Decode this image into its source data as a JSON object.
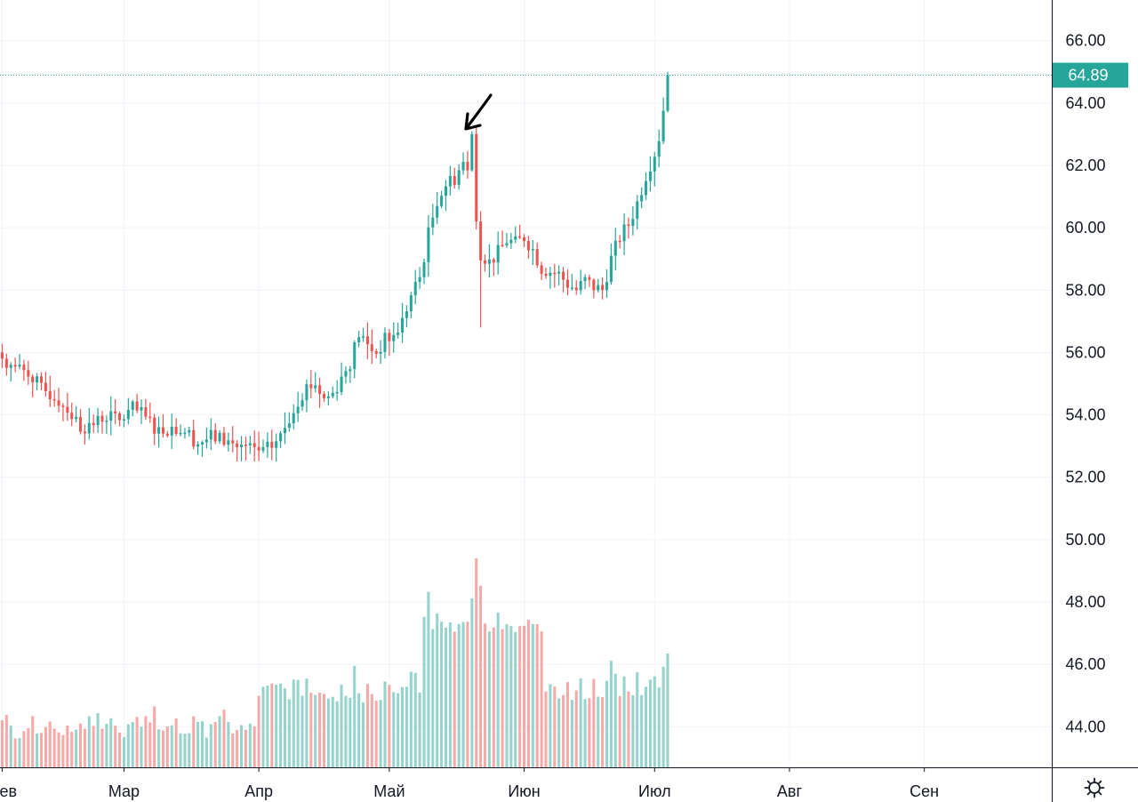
{
  "chart_data": {
    "type": "candlestick",
    "y_axis": {
      "ticks": [
        "44.00",
        "46.00",
        "48.00",
        "50.00",
        "52.00",
        "54.00",
        "56.00",
        "58.00",
        "60.00",
        "62.00",
        "64.00",
        "66.00"
      ],
      "tick_values": [
        44,
        46,
        48,
        50,
        52,
        54,
        56,
        58,
        60,
        62,
        64,
        66
      ],
      "range": [
        42.7,
        67.3
      ],
      "side": "right"
    },
    "x_axis": {
      "months": [
        "Фев",
        "Мар",
        "Апр",
        "Май",
        "Июн",
        "Июл",
        "Авг",
        "Сен"
      ],
      "month_day_index": [
        0,
        28,
        59,
        89,
        120,
        150,
        181,
        212
      ],
      "visible_range_days": [
        -0.5,
        241.3
      ]
    },
    "last_price": {
      "label": "64.89",
      "value": 64.89
    },
    "grid": true,
    "colors": {
      "up": "#26a69a",
      "down": "#ef5350",
      "up_volume": "#95d3cd",
      "down_volume": "#f7a9a7",
      "last_price": "#26a69a",
      "grid": "#f0f3fa",
      "axis": "#131722"
    },
    "anchors": [
      [
        0,
        55.8
      ],
      [
        3,
        55.5
      ],
      [
        6,
        55.4
      ],
      [
        9,
        54.8
      ],
      [
        12,
        54.6
      ],
      [
        15,
        54.2
      ],
      [
        18,
        53.6
      ],
      [
        21,
        53.7
      ],
      [
        24,
        54.0
      ],
      [
        27,
        53.8
      ],
      [
        30,
        54.2
      ],
      [
        33,
        53.9
      ],
      [
        36,
        53.5
      ],
      [
        39,
        53.6
      ],
      [
        42,
        53.5
      ],
      [
        45,
        53.1
      ],
      [
        48,
        53.3
      ],
      [
        51,
        53.2
      ],
      [
        54,
        53.0
      ],
      [
        57,
        52.9
      ],
      [
        60,
        52.8
      ],
      [
        62,
        53.0
      ],
      [
        64,
        53.3
      ],
      [
        66,
        53.9
      ],
      [
        68,
        54.5
      ],
      [
        70,
        54.9
      ],
      [
        72,
        55.0
      ],
      [
        74,
        54.5
      ],
      [
        76,
        54.7
      ],
      [
        78,
        55.2
      ],
      [
        80,
        55.7
      ],
      [
        82,
        56.6
      ],
      [
        84,
        56.2
      ],
      [
        86,
        56.0
      ],
      [
        88,
        56.4
      ],
      [
        90,
        56.5
      ],
      [
        92,
        57.0
      ],
      [
        94,
        57.8
      ],
      [
        96,
        58.4
      ],
      [
        98,
        59.8
      ],
      [
        100,
        60.9
      ],
      [
        102,
        61.4
      ],
      [
        104,
        61.6
      ],
      [
        106,
        62.1
      ],
      [
        107,
        61.8
      ],
      [
        108,
        63.0
      ],
      [
        109,
        60.2
      ],
      [
        110,
        59.2
      ],
      [
        112,
        58.9
      ],
      [
        114,
        59.2
      ],
      [
        116,
        59.6
      ],
      [
        118,
        59.5
      ],
      [
        120,
        59.7
      ],
      [
        122,
        59.3
      ],
      [
        124,
        58.7
      ],
      [
        126,
        58.6
      ],
      [
        128,
        58.5
      ],
      [
        130,
        58.2
      ],
      [
        132,
        58.0
      ],
      [
        134,
        58.3
      ],
      [
        136,
        58.1
      ],
      [
        138,
        58.0
      ],
      [
        140,
        59.0
      ],
      [
        142,
        59.7
      ],
      [
        144,
        60.1
      ],
      [
        146,
        60.8
      ],
      [
        148,
        61.7
      ],
      [
        150,
        62.4
      ],
      [
        151,
        62.9
      ],
      [
        152,
        63.8
      ],
      [
        153,
        64.89
      ]
    ],
    "annotation": "arrow",
    "symbol_full_name": ""
  }
}
